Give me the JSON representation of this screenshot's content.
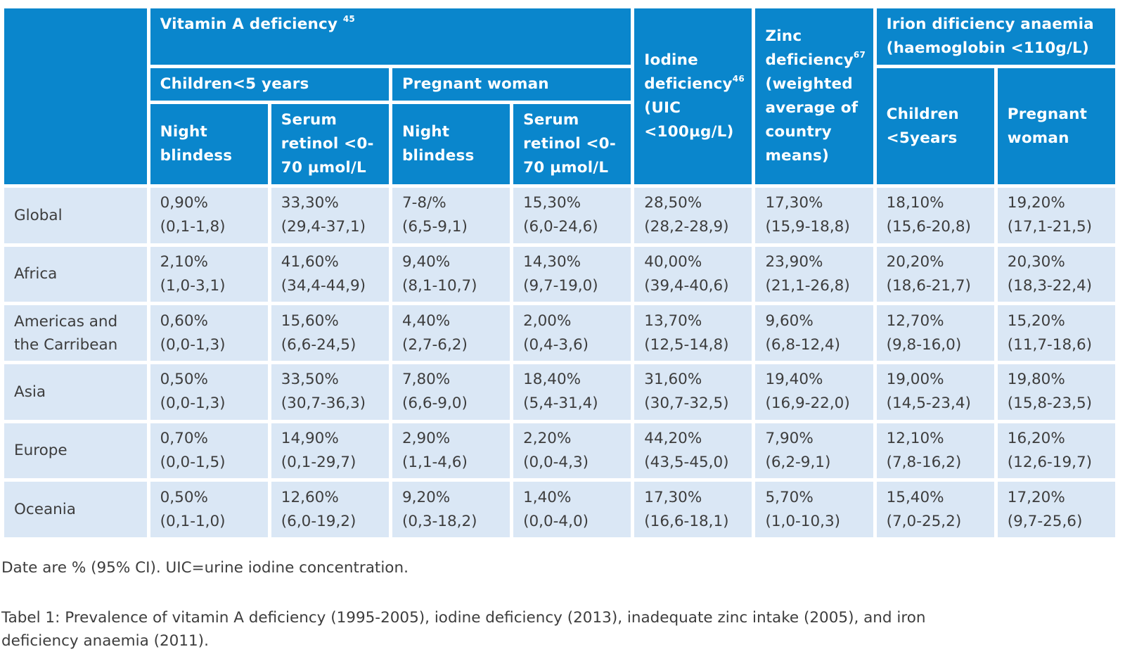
{
  "headers": {
    "vitamin_a": "Vitamin A deficiency",
    "vitamin_a_ref": "45",
    "children_under5": "Children<5 years",
    "pregnant_woman": "Pregnant woman",
    "night_blindness": "Night blindess",
    "serum_retinol": "Serum retinol <0-70 µmol/L",
    "iodine": "Iodine deficiency",
    "iodine_ref": "46",
    "iodine_unit": "(UIC <100µg/L)",
    "zinc": "Zinc deficiency",
    "zinc_ref": "67",
    "zinc_note": "(weighted average of country means)",
    "iron": "Irion dificiency anaemia (haemoglobin <110g/L)",
    "iron_children": "Children <5years",
    "iron_pregnant": "Pregnant woman"
  },
  "rows": [
    {
      "region": "Global",
      "cells": [
        {
          "v": "0,90%",
          "ci": "(0,1-1,8)"
        },
        {
          "v": "33,30%",
          "ci": "(29,4-37,1)"
        },
        {
          "v": "7-8/%",
          "ci": "(6,5-9,1)"
        },
        {
          "v": "15,30%",
          "ci": "(6,0-24,6)"
        },
        {
          "v": "28,50%",
          "ci": "(28,2-28,9)"
        },
        {
          "v": "17,30%",
          "ci": "(15,9-18,8)"
        },
        {
          "v": "18,10%",
          "ci": "(15,6-20,8)"
        },
        {
          "v": "19,20%",
          "ci": "(17,1-21,5)"
        }
      ]
    },
    {
      "region": "Africa",
      "cells": [
        {
          "v": "2,10%",
          "ci": "(1,0-3,1)"
        },
        {
          "v": "41,60%",
          "ci": "(34,4-44,9)"
        },
        {
          "v": "9,40%",
          "ci": "(8,1-10,7)"
        },
        {
          "v": "14,30%",
          "ci": "(9,7-19,0)"
        },
        {
          "v": "40,00%",
          "ci": "(39,4-40,6)"
        },
        {
          "v": "23,90%",
          "ci": "(21,1-26,8)"
        },
        {
          "v": "20,20%",
          "ci": "(18,6-21,7)"
        },
        {
          "v": "20,30%",
          "ci": "(18,3-22,4)"
        }
      ]
    },
    {
      "region": "Americas and the Carribean",
      "cells": [
        {
          "v": "0,60%",
          "ci": "(0,0-1,3)"
        },
        {
          "v": "15,60%",
          "ci": "(6,6-24,5)"
        },
        {
          "v": "4,40%",
          "ci": "(2,7-6,2)"
        },
        {
          "v": "2,00%",
          "ci": "(0,4-3,6)"
        },
        {
          "v": "13,70%",
          "ci": "(12,5-14,8)"
        },
        {
          "v": "9,60%",
          "ci": "(6,8-12,4)"
        },
        {
          "v": "12,70%",
          "ci": "(9,8-16,0)"
        },
        {
          "v": "15,20%",
          "ci": "(11,7-18,6)"
        }
      ]
    },
    {
      "region": "Asia",
      "cells": [
        {
          "v": "0,50%",
          "ci": "(0,0-1,3)"
        },
        {
          "v": "33,50%",
          "ci": "(30,7-36,3)"
        },
        {
          "v": "7,80%",
          "ci": "(6,6-9,0)"
        },
        {
          "v": "18,40%",
          "ci": "(5,4-31,4)"
        },
        {
          "v": "31,60%",
          "ci": "(30,7-32,5)"
        },
        {
          "v": "19,40%",
          "ci": "(16,9-22,0)"
        },
        {
          "v": "19,00%",
          "ci": "(14,5-23,4)"
        },
        {
          "v": "19,80%",
          "ci": "(15,8-23,5)"
        }
      ]
    },
    {
      "region": "Europe",
      "cells": [
        {
          "v": "0,70%",
          "ci": "(0,0-1,5)"
        },
        {
          "v": "14,90%",
          "ci": "(0,1-29,7)"
        },
        {
          "v": "2,90%",
          "ci": "(1,1-4,6)"
        },
        {
          "v": "2,20%",
          "ci": "(0,0-4,3)"
        },
        {
          "v": "44,20%",
          "ci": "(43,5-45,0)"
        },
        {
          "v": "7,90%",
          "ci": "(6,2-9,1)"
        },
        {
          "v": "12,10%",
          "ci": "(7,8-16,2)"
        },
        {
          "v": "16,20%",
          "ci": "(12,6-19,7)"
        }
      ]
    },
    {
      "region": "Oceania",
      "cells": [
        {
          "v": "0,50%",
          "ci": "(0,1-1,0)"
        },
        {
          "v": "12,60%",
          "ci": "(6,0-19,2)"
        },
        {
          "v": "9,20%",
          "ci": "(0,3-18,2)"
        },
        {
          "v": "1,40%",
          "ci": "(0,0-4,0)"
        },
        {
          "v": "17,30%",
          "ci": "(16,6-18,1)"
        },
        {
          "v": "5,70%",
          "ci": "(1,0-10,3)"
        },
        {
          "v": "15,40%",
          "ci": "(7,0-25,2)"
        },
        {
          "v": "17,20%",
          "ci": "(9,7-25,6)"
        }
      ]
    }
  ],
  "note": "Date are % (95% CI). UIC=urine iodine concentration.",
  "caption": "Tabel 1: Prevalence of vitamin A deficiency (1995-2005), iodine deficiency (2013), inadequate zinc intake (2005), and iron deficiency anaemia (2011).",
  "colors": {
    "header_bg": "#0a86cc",
    "cell_bg": "#dae7f5",
    "text": "#3d3d3d"
  }
}
